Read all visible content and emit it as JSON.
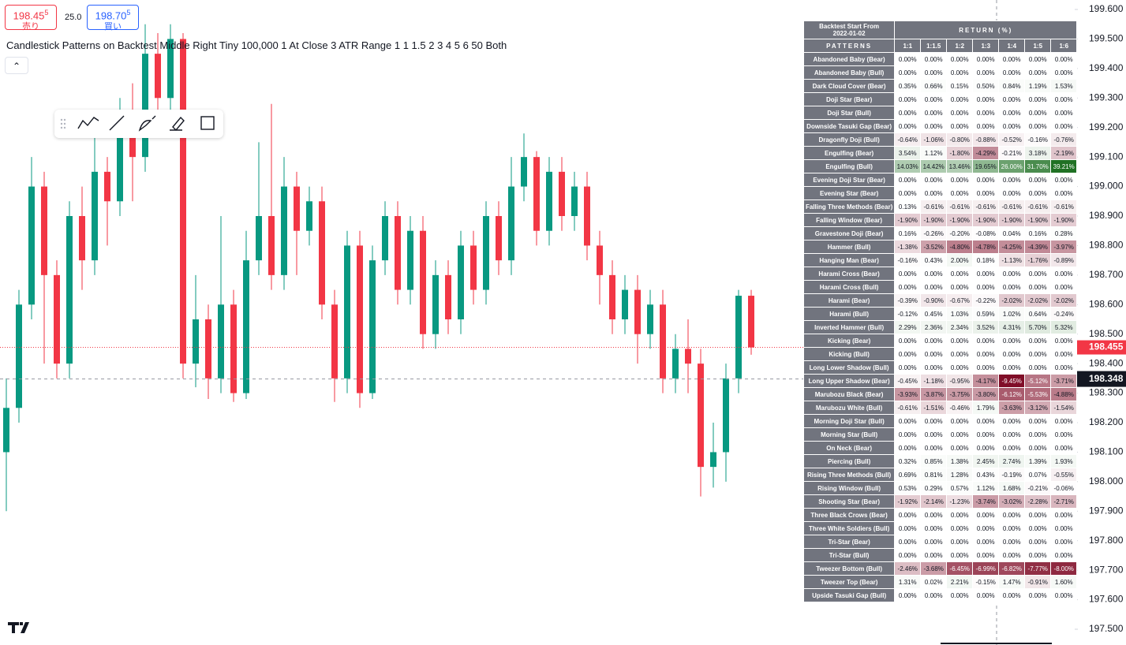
{
  "quote": {
    "sell_price": "198.45",
    "sell_price_sup": "5",
    "sell_label": "売り",
    "spread": "25.0",
    "buy_price": "198.70",
    "buy_price_sup": "5",
    "buy_label": "買い"
  },
  "indicator_title": "Candlestick Patterns on Backtest Middle Right Tiny 100,000 1 At Close 3 ATR Range 1 1 1.5 2 3 4 5 6 50 Both",
  "chart_data": {
    "type": "candlestick",
    "open": [
      198.1,
      198.25,
      198.6,
      199.0,
      198.7,
      198.4,
      198.9,
      198.75,
      199.05,
      198.95,
      199.2,
      199.1,
      199.45,
      199.3,
      199.5,
      198.4,
      198.55,
      198.35,
      198.6,
      198.3,
      198.75,
      198.9,
      198.7,
      199.0,
      198.85,
      198.95,
      198.6,
      198.35,
      198.8,
      198.3,
      198.75,
      198.9,
      198.65,
      198.85,
      198.5,
      198.7,
      198.55,
      198.8,
      198.65,
      198.9,
      198.75,
      199.0,
      199.1,
      198.85,
      199.05,
      198.9,
      199.0,
      198.8,
      198.7,
      198.55,
      198.65,
      198.5,
      198.6,
      198.35,
      198.45,
      198.4,
      198.05,
      198.1,
      198.35,
      198.63
    ],
    "high": [
      198.35,
      198.65,
      199.1,
      199.05,
      198.75,
      198.95,
      199.0,
      199.2,
      199.1,
      199.3,
      199.35,
      199.55,
      199.52,
      199.55,
      199.52,
      198.7,
      198.6,
      198.9,
      198.65,
      198.85,
      199.15,
      199.28,
      199.1,
      199.05,
      199.0,
      199.0,
      198.65,
      198.85,
      198.85,
      198.8,
      198.95,
      198.95,
      198.9,
      198.9,
      198.75,
      198.75,
      198.85,
      198.85,
      198.95,
      198.95,
      199.1,
      199.18,
      199.12,
      199.1,
      199.1,
      199.05,
      199.05,
      198.85,
      198.75,
      198.7,
      198.7,
      198.65,
      198.65,
      198.5,
      198.55,
      198.45,
      198.2,
      198.4,
      198.65,
      198.65
    ],
    "low": [
      197.9,
      198.2,
      198.55,
      198.4,
      198.35,
      198.35,
      198.65,
      198.7,
      198.8,
      198.9,
      198.95,
      199.05,
      199.25,
      199.25,
      198.35,
      198.32,
      198.28,
      198.3,
      198.27,
      198.28,
      198.7,
      198.65,
      198.65,
      198.7,
      198.8,
      198.55,
      198.27,
      198.3,
      198.25,
      198.28,
      198.7,
      198.6,
      198.6,
      198.45,
      198.45,
      198.5,
      198.5,
      198.6,
      198.6,
      198.7,
      198.7,
      198.95,
      198.8,
      198.8,
      198.85,
      198.85,
      198.75,
      198.6,
      198.5,
      198.5,
      198.4,
      198.45,
      198.3,
      198.3,
      198.3,
      197.95,
      197.98,
      198.0,
      198.3,
      198.43
    ],
    "close": [
      198.25,
      198.6,
      199.0,
      198.7,
      198.4,
      198.9,
      198.75,
      199.05,
      198.95,
      199.2,
      199.1,
      199.45,
      199.3,
      199.5,
      198.4,
      198.55,
      198.35,
      198.6,
      198.3,
      198.75,
      198.9,
      198.7,
      199.0,
      198.85,
      198.95,
      198.6,
      198.35,
      198.8,
      198.3,
      198.75,
      198.9,
      198.65,
      198.85,
      198.5,
      198.7,
      198.55,
      198.8,
      198.65,
      198.9,
      198.75,
      199.0,
      199.1,
      198.85,
      199.05,
      198.9,
      199.0,
      198.8,
      198.7,
      198.55,
      198.65,
      198.5,
      198.6,
      198.35,
      198.45,
      198.4,
      198.05,
      198.1,
      198.35,
      198.63,
      198.455
    ],
    "up_color": "#089981",
    "down_color": "#f23645",
    "ylim": [
      197.5,
      199.6
    ],
    "yticks": [
      {
        "value": 199.6,
        "label": "199.600"
      },
      {
        "value": 199.5,
        "label": "199.500"
      },
      {
        "value": 199.4,
        "label": "199.400"
      },
      {
        "value": 199.3,
        "label": "199.300"
      },
      {
        "value": 199.2,
        "label": "199.200"
      },
      {
        "value": 199.1,
        "label": "199.100"
      },
      {
        "value": 199.0,
        "label": "199.000"
      },
      {
        "value": 198.9,
        "label": "198.900"
      },
      {
        "value": 198.8,
        "label": "198.800"
      },
      {
        "value": 198.7,
        "label": "198.700"
      },
      {
        "value": 198.6,
        "label": "198.600"
      },
      {
        "value": 198.5,
        "label": "198.500"
      },
      {
        "value": 198.4,
        "label": "198.400"
      },
      {
        "value": 198.3,
        "label": "198.300"
      },
      {
        "value": 198.2,
        "label": "198.200"
      },
      {
        "value": 198.1,
        "label": "198.100"
      },
      {
        "value": 198.0,
        "label": "198.000"
      },
      {
        "value": 197.9,
        "label": "197.900"
      },
      {
        "value": 197.8,
        "label": "197.800"
      },
      {
        "value": 197.7,
        "label": "197.700"
      },
      {
        "value": 197.6,
        "label": "197.600"
      },
      {
        "value": 197.5,
        "label": "197.500"
      }
    ],
    "last_price": {
      "value": 198.455,
      "label": "198.455"
    },
    "crosshair_price": {
      "value": 198.348,
      "label": "198.348"
    }
  },
  "table": {
    "start_label": "Backtest Start From",
    "start_date": "2022-01-02",
    "return_header": "RETURN (%)",
    "patterns_header": "PATTERNS",
    "columns": [
      "1:1",
      "1:1.5",
      "1:2",
      "1:3",
      "1:4",
      "1:5",
      "1:6"
    ],
    "rows": [
      [
        "Abandoned Baby (Bear)",
        "0.00%",
        "0.00%",
        "0.00%",
        "0.00%",
        "0.00%",
        "0.00%",
        "0.00%"
      ],
      [
        "Abandoned Baby (Bull)",
        "0.00%",
        "0.00%",
        "0.00%",
        "0.00%",
        "0.00%",
        "0.00%",
        "0.00%"
      ],
      [
        "Dark Cloud Cover (Bear)",
        "0.35%",
        "0.66%",
        "0.15%",
        "0.50%",
        "0.84%",
        "1.19%",
        "1.53%"
      ],
      [
        "Doji Star (Bear)",
        "0.00%",
        "0.00%",
        "0.00%",
        "0.00%",
        "0.00%",
        "0.00%",
        "0.00%"
      ],
      [
        "Doji Star (Bull)",
        "0.00%",
        "0.00%",
        "0.00%",
        "0.00%",
        "0.00%",
        "0.00%",
        "0.00%"
      ],
      [
        "Downside Tasuki Gap (Bear)",
        "0.00%",
        "0.00%",
        "0.00%",
        "0.00%",
        "0.00%",
        "0.00%",
        "0.00%"
      ],
      [
        "Dragonfly Doji (Bull)",
        "-0.64%",
        "-1.06%",
        "-0.80%",
        "-0.88%",
        "-0.52%",
        "-0.16%",
        "-0.76%"
      ],
      [
        "Engulfing (Bear)",
        "3.54%",
        "1.12%",
        "-1.80%",
        "-4.29%",
        "-0.21%",
        "3.18%",
        "-2.19%"
      ],
      [
        "Engulfing (Bull)",
        "14.03%",
        "14.42%",
        "13.46%",
        "19.65%",
        "26.00%",
        "31.70%",
        "39.21%"
      ],
      [
        "Evening Doji Star (Bear)",
        "0.00%",
        "0.00%",
        "0.00%",
        "0.00%",
        "0.00%",
        "0.00%",
        "0.00%"
      ],
      [
        "Evening Star (Bear)",
        "0.00%",
        "0.00%",
        "0.00%",
        "0.00%",
        "0.00%",
        "0.00%",
        "0.00%"
      ],
      [
        "Falling Three Methods (Bear)",
        "0.13%",
        "-0.61%",
        "-0.61%",
        "-0.61%",
        "-0.61%",
        "-0.61%",
        "-0.61%"
      ],
      [
        "Falling Window (Bear)",
        "-1.90%",
        "-1.90%",
        "-1.90%",
        "-1.90%",
        "-1.90%",
        "-1.90%",
        "-1.90%"
      ],
      [
        "Gravestone Doji (Bear)",
        "0.16%",
        "-0.26%",
        "-0.20%",
        "-0.08%",
        "0.04%",
        "0.16%",
        "0.28%"
      ],
      [
        "Hammer (Bull)",
        "-1.38%",
        "-3.52%",
        "-4.80%",
        "-4.78%",
        "-4.25%",
        "-4.39%",
        "-3.97%"
      ],
      [
        "Hanging Man (Bear)",
        "-0.16%",
        "0.43%",
        "2.00%",
        "0.18%",
        "-1.13%",
        "-1.76%",
        "-0.89%"
      ],
      [
        "Harami Cross (Bear)",
        "0.00%",
        "0.00%",
        "0.00%",
        "0.00%",
        "0.00%",
        "0.00%",
        "0.00%"
      ],
      [
        "Harami Cross (Bull)",
        "0.00%",
        "0.00%",
        "0.00%",
        "0.00%",
        "0.00%",
        "0.00%",
        "0.00%"
      ],
      [
        "Harami (Bear)",
        "-0.39%",
        "-0.90%",
        "-0.67%",
        "-0.22%",
        "-2.02%",
        "-2.02%",
        "-2.02%"
      ],
      [
        "Harami (Bull)",
        "-0.12%",
        "0.45%",
        "1.03%",
        "0.59%",
        "1.02%",
        "0.64%",
        "-0.24%"
      ],
      [
        "Inverted Hammer (Bull)",
        "2.29%",
        "2.36%",
        "2.34%",
        "3.52%",
        "4.31%",
        "5.70%",
        "5.32%"
      ],
      [
        "Kicking (Bear)",
        "0.00%",
        "0.00%",
        "0.00%",
        "0.00%",
        "0.00%",
        "0.00%",
        "0.00%"
      ],
      [
        "Kicking (Bull)",
        "0.00%",
        "0.00%",
        "0.00%",
        "0.00%",
        "0.00%",
        "0.00%",
        "0.00%"
      ],
      [
        "Long Lower Shadow (Bull)",
        "0.00%",
        "0.00%",
        "0.00%",
        "0.00%",
        "0.00%",
        "0.00%",
        "0.00%"
      ],
      [
        "Long Upper Shadow (Bear)",
        "-0.45%",
        "-1.18%",
        "-0.95%",
        "-4.17%",
        "-9.45%",
        "-5.12%",
        "-3.71%"
      ],
      [
        "Marubozu Black (Bear)",
        "-3.93%",
        "-3.87%",
        "-3.75%",
        "-3.80%",
        "-6.12%",
        "-5.53%",
        "-4.88%"
      ],
      [
        "Marubozu White (Bull)",
        "-0.61%",
        "-1.51%",
        "-0.46%",
        "1.79%",
        "-3.63%",
        "-3.12%",
        "-1.54%"
      ],
      [
        "Morning Doji Star (Bull)",
        "0.00%",
        "0.00%",
        "0.00%",
        "0.00%",
        "0.00%",
        "0.00%",
        "0.00%"
      ],
      [
        "Morning Star (Bull)",
        "0.00%",
        "0.00%",
        "0.00%",
        "0.00%",
        "0.00%",
        "0.00%",
        "0.00%"
      ],
      [
        "On Neck (Bear)",
        "0.00%",
        "0.00%",
        "0.00%",
        "0.00%",
        "0.00%",
        "0.00%",
        "0.00%"
      ],
      [
        "Piercing (Bull)",
        "0.32%",
        "0.85%",
        "1.38%",
        "2.45%",
        "2.74%",
        "1.39%",
        "1.93%"
      ],
      [
        "Rising Three Methods (Bull)",
        "0.69%",
        "0.81%",
        "1.28%",
        "0.43%",
        "-0.19%",
        "0.07%",
        "-0.55%"
      ],
      [
        "Rising Window (Bull)",
        "0.53%",
        "0.29%",
        "0.57%",
        "1.12%",
        "1.68%",
        "-0.21%",
        "-0.06%"
      ],
      [
        "Shooting Star (Bear)",
        "-1.92%",
        "-2.14%",
        "-1.23%",
        "-3.74%",
        "-3.02%",
        "-2.28%",
        "-2.71%"
      ],
      [
        "Three Black Crows (Bear)",
        "0.00%",
        "0.00%",
        "0.00%",
        "0.00%",
        "0.00%",
        "0.00%",
        "0.00%"
      ],
      [
        "Three White Soldiers (Bull)",
        "0.00%",
        "0.00%",
        "0.00%",
        "0.00%",
        "0.00%",
        "0.00%",
        "0.00%"
      ],
      [
        "Tri-Star (Bear)",
        "0.00%",
        "0.00%",
        "0.00%",
        "0.00%",
        "0.00%",
        "0.00%",
        "0.00%"
      ],
      [
        "Tri-Star (Bull)",
        "0.00%",
        "0.00%",
        "0.00%",
        "0.00%",
        "0.00%",
        "0.00%",
        "0.00%"
      ],
      [
        "Tweezer Bottom (Bull)",
        "-2.46%",
        "-3.68%",
        "-6.45%",
        "-6.99%",
        "-6.82%",
        "-7.77%",
        "-8.00%"
      ],
      [
        "Tweezer Top (Bear)",
        "1.31%",
        "0.02%",
        "2.21%",
        "-0.15%",
        "1.47%",
        "-0.91%",
        "1.60%"
      ],
      [
        "Upside Tasuki Gap (Bull)",
        "0.00%",
        "0.00%",
        "0.00%",
        "0.00%",
        "0.00%",
        "0.00%",
        "0.00%"
      ]
    ]
  }
}
